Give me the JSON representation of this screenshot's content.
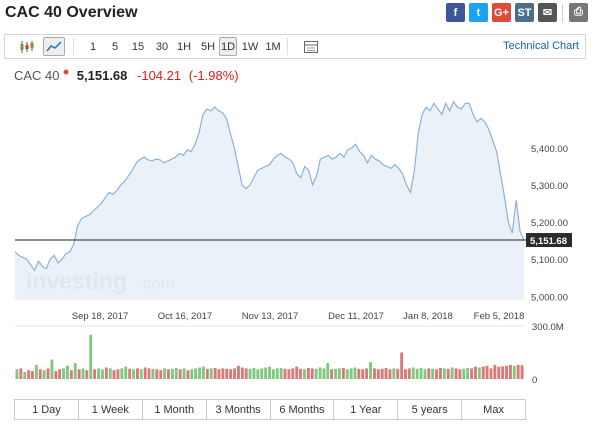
{
  "title": "CAC 40 Overview",
  "share": [
    {
      "icon": "facebook-icon",
      "glyph": "f",
      "color": "#3b5998"
    },
    {
      "icon": "twitter-icon",
      "glyph": "t",
      "color": "#1da1f2"
    },
    {
      "icon": "google-plus-icon",
      "glyph": "G+",
      "color": "#dd4b39"
    },
    {
      "icon": "stocktwits-icon",
      "glyph": "ST",
      "color": "#4a6f8a"
    },
    {
      "icon": "email-icon",
      "glyph": "✉",
      "color": "#555555"
    },
    {
      "icon": "print-icon",
      "glyph": "⎙",
      "color": "#777777"
    }
  ],
  "toolbar": {
    "intervals": [
      "1",
      "5",
      "15",
      "30",
      "1H",
      "5H",
      "1D",
      "1W",
      "1M"
    ],
    "active_interval": "1D",
    "technical_chart": "Technical Chart"
  },
  "quote": {
    "name": "CAC 40",
    "price": "5,151.68",
    "change": "-104.21",
    "change_pct": "(-1.98%)"
  },
  "colors": {
    "area_fill": "#e6eef7",
    "line": "#8fb1d3",
    "down": "#d91e18",
    "up_vol": "#7fc97f",
    "down_vol": "#d9797a"
  },
  "watermark": {
    "brand": "Investing",
    "suffix": ".com"
  },
  "chart_data": {
    "type": "area",
    "x_tick_labels": [
      "Sep 18, 2017",
      "Oct 16, 2017",
      "Nov 13, 2017",
      "Dec 11, 2017",
      "Jan 8, 2018",
      "Feb 5, 2018"
    ],
    "y_tick_labels": [
      "5,400.00",
      "5,300.00",
      "5,200.00",
      "5,100.00",
      "5,000.00"
    ],
    "ylim": [
      4990,
      5540
    ],
    "last_value_label": "5,151.68",
    "last_value": 5151.68,
    "values": [
      5120,
      5110,
      5105,
      5100,
      5085,
      5070,
      5095,
      5080,
      5075,
      5100,
      5110,
      5090,
      5100,
      5115,
      5120,
      5140,
      5190,
      5210,
      5215,
      5220,
      5230,
      5240,
      5250,
      5265,
      5280,
      5275,
      5285,
      5300,
      5310,
      5325,
      5340,
      5360,
      5370,
      5375,
      5368,
      5365,
      5370,
      5368,
      5360,
      5365,
      5370,
      5375,
      5385,
      5380,
      5395,
      5390,
      5410,
      5440,
      5490,
      5505,
      5500,
      5510,
      5500,
      5495,
      5480,
      5440,
      5400,
      5350,
      5300,
      5290,
      5300,
      5320,
      5340,
      5345,
      5350,
      5355,
      5370,
      5380,
      5385,
      5375,
      5370,
      5360,
      5330,
      5320,
      5350,
      5340,
      5300,
      5325,
      5370,
      5375,
      5380,
      5370,
      5375,
      5385,
      5375,
      5395,
      5400,
      5410,
      5390,
      5380,
      5360,
      5380,
      5370,
      5365,
      5355,
      5350,
      5345,
      5355,
      5345,
      5330,
      5300,
      5280,
      5340,
      5440,
      5490,
      5510,
      5500,
      5520,
      5505,
      5490,
      5520,
      5500,
      5525,
      5510,
      5505,
      5520,
      5520,
      5490,
      5470,
      5480,
      5470,
      5450,
      5420,
      5390,
      5330,
      5270,
      5200,
      5170,
      5260,
      5175,
      5150
    ],
    "volume_axis_labels": [
      "300.0M",
      "0"
    ],
    "volume_ylim": [
      0,
      300
    ],
    "volumes": [
      55,
      60,
      40,
      50,
      45,
      80,
      55,
      50,
      60,
      110,
      45,
      55,
      60,
      75,
      50,
      90,
      55,
      60,
      50,
      250,
      55,
      60,
      55,
      65,
      60,
      50,
      55,
      60,
      70,
      58,
      55,
      60,
      55,
      65,
      60,
      58,
      55,
      50,
      60,
      55,
      58,
      62,
      55,
      60,
      50,
      55,
      60,
      65,
      70,
      58,
      60,
      62,
      55,
      60,
      58,
      55,
      60,
      75,
      65,
      60,
      58,
      62,
      55,
      60,
      65,
      70,
      55,
      60,
      62,
      58,
      55,
      60,
      70,
      58,
      55,
      62,
      60,
      58,
      65,
      60,
      90,
      55,
      58,
      60,
      62,
      55,
      60,
      65,
      58,
      55,
      60,
      95,
      60,
      55,
      58,
      62,
      55,
      60,
      58,
      150,
      55,
      60,
      65,
      58,
      62,
      55,
      60,
      58,
      55,
      62,
      60,
      58,
      65,
      60,
      55,
      58,
      62,
      60,
      70,
      65,
      70,
      75,
      60,
      80,
      70,
      72,
      75,
      80,
      75,
      80,
      78
    ],
    "volume_up": [
      true,
      false,
      true,
      false,
      false,
      true,
      false,
      true,
      false,
      true,
      false,
      false,
      true,
      true,
      false,
      true,
      false,
      true,
      false,
      true,
      false,
      true,
      true,
      false,
      true,
      false,
      false,
      true,
      true,
      false,
      true,
      false,
      true,
      false,
      false,
      true,
      false,
      false,
      true,
      false,
      true,
      true,
      false,
      true,
      false,
      true,
      true,
      true,
      true,
      false,
      true,
      false,
      false,
      false,
      false,
      false,
      false,
      false,
      false,
      false,
      true,
      true,
      true,
      true,
      true,
      true,
      true,
      true,
      true,
      false,
      false,
      false,
      false,
      false,
      true,
      false,
      false,
      true,
      true,
      true,
      true,
      false,
      true,
      true,
      false,
      true,
      true,
      true,
      false,
      false,
      false,
      true,
      false,
      false,
      false,
      false,
      false,
      true,
      false,
      false,
      false,
      false,
      true,
      true,
      true,
      true,
      false,
      true,
      false,
      false,
      true,
      false,
      true,
      false,
      false,
      true,
      true,
      false,
      false,
      true,
      false,
      false,
      false,
      false,
      false,
      false,
      false,
      false,
      true,
      false,
      false
    ]
  },
  "ranges": [
    "1 Day",
    "1 Week",
    "1 Month",
    "3 Months",
    "6 Months",
    "1 Year",
    "5 years",
    "Max"
  ]
}
